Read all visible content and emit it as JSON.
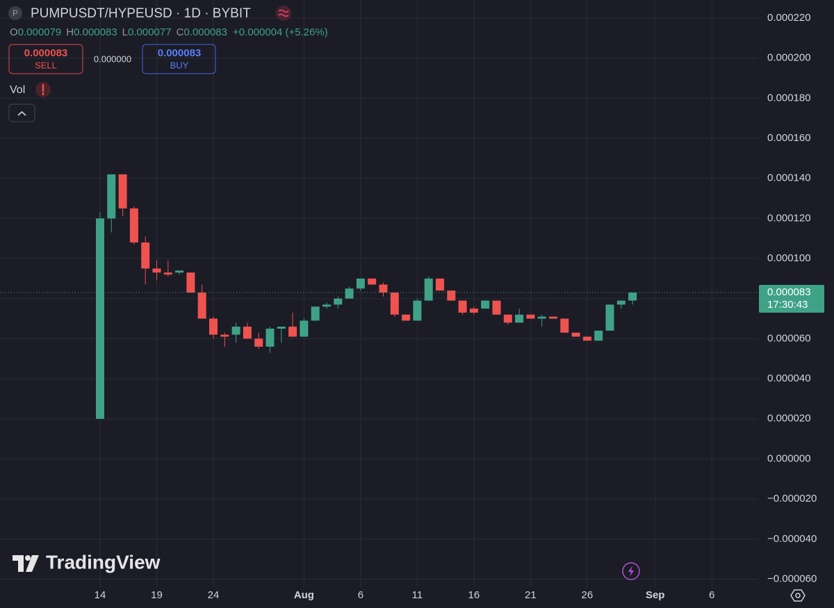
{
  "chart_data": {
    "type": "candlestick",
    "title": "PUMPUSDT/HYPEUSD · 1D · BYBIT",
    "symbol_icon": "P",
    "categories": [
      "14",
      null,
      null,
      null,
      null,
      "19",
      null,
      null,
      null,
      null,
      "24",
      null,
      null,
      null,
      null,
      null,
      null,
      null,
      "Aug",
      null,
      null,
      null,
      null,
      "6",
      null,
      null,
      null,
      null,
      "11",
      null,
      null,
      null,
      null,
      "16",
      null,
      null,
      null,
      null,
      "21",
      null,
      null,
      null,
      null,
      "26",
      null,
      null,
      null,
      null,
      null,
      "Sep",
      null,
      null,
      null,
      null,
      "6"
    ],
    "open": [
      2e-05,
      0.00012,
      0.000142,
      0.000125,
      0.000108,
      9.5e-05,
      9.3e-05,
      9.3e-05,
      9.3e-05,
      8.3e-05,
      7e-05,
      6.2e-05,
      6.2e-05,
      6.6e-05,
      6e-05,
      5.6e-05,
      6.5e-05,
      6.6e-05,
      6.1e-05,
      6.9e-05,
      7.6e-05,
      7.7e-05,
      8e-05,
      8.5e-05,
      9e-05,
      8.7e-05,
      8.3e-05,
      7.2e-05,
      6.9e-05,
      7.9e-05,
      9e-05,
      8.4e-05,
      7.9e-05,
      7.5e-05,
      7.5e-05,
      7.9e-05,
      7.2e-05,
      6.8e-05,
      7.2e-05,
      7e-05,
      7.1e-05,
      7e-05,
      6.3e-05,
      6.1e-05,
      5.9e-05,
      6.4e-05,
      7.7e-05,
      7.9e-05,
      null,
      null,
      null,
      null,
      null,
      null,
      null
    ],
    "high": [
      0.000123,
      0.000142,
      0.000142,
      0.000126,
      0.000111,
      9.9e-05,
      9.9e-05,
      9.4e-05,
      9.3e-05,
      8.7e-05,
      7.1e-05,
      6.3e-05,
      6.8e-05,
      6.8e-05,
      6.3e-05,
      6.6e-05,
      6.6e-05,
      7.3e-05,
      7e-05,
      7.6e-05,
      7.8e-05,
      8.1e-05,
      8.6e-05,
      9e-05,
      9e-05,
      8.8e-05,
      8.3e-05,
      7.2e-05,
      8e-05,
      9.1e-05,
      9e-05,
      8.4e-05,
      7.9e-05,
      7.6e-05,
      7.9e-05,
      7.9e-05,
      7.2e-05,
      7.5e-05,
      7.2e-05,
      7.2e-05,
      7.1e-05,
      7e-05,
      6.3e-05,
      6.1e-05,
      6.4e-05,
      7.7e-05,
      7.9e-05,
      8.3e-05,
      null,
      null,
      null,
      null,
      null,
      null,
      null
    ],
    "low": [
      2e-05,
      0.000113,
      0.000121,
      0.000107,
      8.7e-05,
      8.9e-05,
      9.1e-05,
      9.2e-05,
      8.3e-05,
      7e-05,
      6e-05,
      5.6e-05,
      5.8e-05,
      6e-05,
      5.5e-05,
      5.3e-05,
      5.8e-05,
      6.1e-05,
      6.1e-05,
      6.9e-05,
      7.5e-05,
      7.5e-05,
      8e-05,
      8.4e-05,
      8.7e-05,
      8.1e-05,
      7.1e-05,
      6.9e-05,
      6.9e-05,
      7.9e-05,
      8.4e-05,
      7.9e-05,
      7.2e-05,
      7.2e-05,
      7.5e-05,
      7.2e-05,
      6.7e-05,
      6.8e-05,
      7e-05,
      6.6e-05,
      7e-05,
      6.3e-05,
      6.1e-05,
      5.9e-05,
      5.9e-05,
      6.4e-05,
      7.5e-05,
      7.7e-05,
      null,
      null,
      null,
      null,
      null,
      null,
      null
    ],
    "close": [
      0.00012,
      0.000142,
      0.000125,
      0.000108,
      9.5e-05,
      9.3e-05,
      9.2e-05,
      9.4e-05,
      8.3e-05,
      7e-05,
      6.2e-05,
      6.1e-05,
      6.6e-05,
      6e-05,
      5.6e-05,
      6.5e-05,
      6.6e-05,
      6.1e-05,
      6.9e-05,
      7.6e-05,
      7.7e-05,
      8e-05,
      8.5e-05,
      9e-05,
      8.7e-05,
      8.3e-05,
      7.2e-05,
      6.9e-05,
      7.9e-05,
      9e-05,
      8.4e-05,
      7.9e-05,
      7.3e-05,
      7.3e-05,
      7.9e-05,
      7.2e-05,
      6.8e-05,
      7.2e-05,
      7e-05,
      7.1e-05,
      7e-05,
      6.3e-05,
      6.1e-05,
      5.9e-05,
      6.4e-05,
      7.7e-05,
      7.9e-05,
      8.3e-05,
      null,
      null,
      null,
      null,
      null,
      null,
      null
    ],
    "up_color": "#3fa287",
    "down_color": "#ef5350",
    "ylim": [
      -6.4e-05,
      0.000229
    ],
    "yticks": [
      {
        "value": 0.00022,
        "label": "0.000220"
      },
      {
        "value": 0.0002,
        "label": "0.000200"
      },
      {
        "value": 0.00018,
        "label": "0.000180"
      },
      {
        "value": 0.00016,
        "label": "0.000160"
      },
      {
        "value": 0.00014,
        "label": "0.000140"
      },
      {
        "value": 0.00012,
        "label": "0.000120"
      },
      {
        "value": 0.0001,
        "label": "0.000100"
      },
      {
        "value": 8e-05,
        "label": "0.000080"
      },
      {
        "value": 6e-05,
        "label": "0.000060"
      },
      {
        "value": 4e-05,
        "label": "0.000040"
      },
      {
        "value": 2e-05,
        "label": "0.000020"
      },
      {
        "value": 0,
        "label": "0.000000"
      },
      {
        "value": -2e-05,
        "label": "−0.000020"
      },
      {
        "value": -4e-05,
        "label": "−0.000040"
      },
      {
        "value": -6e-05,
        "label": "−0.000060"
      }
    ],
    "grid": true,
    "last_price_line": true
  },
  "legend": {
    "open_label": "O",
    "high_label": "H",
    "low_label": "L",
    "close_label": "C",
    "change": "+0.000004 (+5.26%)"
  },
  "trade_panel": {
    "sell_label": "SELL",
    "buy_label": "BUY",
    "spread": "0.000000"
  },
  "indicators": {
    "volume": "Vol"
  },
  "countdown": "17:30:43",
  "watermark": "TradingView"
}
